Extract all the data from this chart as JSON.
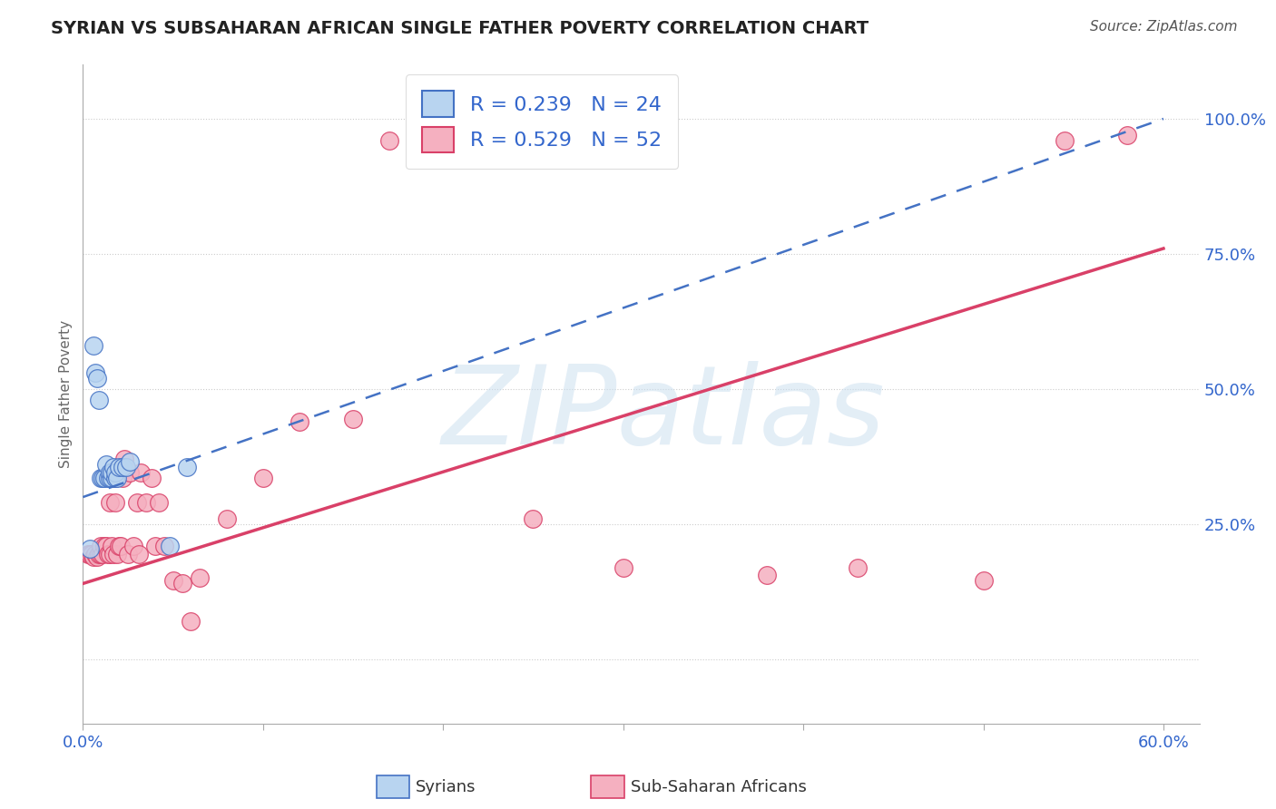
{
  "title": "SYRIAN VS SUBSAHARAN AFRICAN SINGLE FATHER POVERTY CORRELATION CHART",
  "source": "Source: ZipAtlas.com",
  "ylabel": "Single Father Poverty",
  "watermark": "ZIPatlas",
  "xlim": [
    0.0,
    0.62
  ],
  "ylim": [
    -0.12,
    1.1
  ],
  "xtick_positions": [
    0.0,
    0.1,
    0.2,
    0.3,
    0.4,
    0.5,
    0.6
  ],
  "xticklabels": [
    "0.0%",
    "",
    "",
    "",
    "",
    "",
    "60.0%"
  ],
  "ytick_positions": [
    0.0,
    0.25,
    0.5,
    0.75,
    1.0
  ],
  "ytick_labels": [
    "",
    "25.0%",
    "50.0%",
    "75.0%",
    "100.0%"
  ],
  "syrian_R": 0.239,
  "syrian_N": 24,
  "subsaharan_R": 0.529,
  "subsaharan_N": 52,
  "syrian_color": "#b8d4f0",
  "subsaharan_color": "#f5b0c0",
  "syrian_edge_color": "#4472c4",
  "subsaharan_edge_color": "#d94068",
  "syrian_line_color": "#4472c4",
  "subsaharan_line_color": "#d94068",
  "syrian_line": {
    "x0": 0.0,
    "y0": 0.3,
    "x1": 0.6,
    "y1": 1.0
  },
  "subsaharan_line": {
    "x0": 0.0,
    "y0": 0.14,
    "x1": 0.6,
    "y1": 0.76
  },
  "syrians_x": [
    0.004,
    0.006,
    0.007,
    0.008,
    0.009,
    0.01,
    0.011,
    0.012,
    0.013,
    0.014,
    0.015,
    0.015,
    0.016,
    0.016,
    0.017,
    0.018,
    0.018,
    0.019,
    0.02,
    0.022,
    0.024,
    0.026,
    0.048,
    0.058
  ],
  "syrians_y": [
    0.205,
    0.58,
    0.53,
    0.52,
    0.48,
    0.335,
    0.335,
    0.335,
    0.36,
    0.335,
    0.335,
    0.345,
    0.335,
    0.345,
    0.355,
    0.335,
    0.345,
    0.335,
    0.355,
    0.355,
    0.355,
    0.365,
    0.21,
    0.355
  ],
  "subsaharan_x": [
    0.003,
    0.004,
    0.005,
    0.006,
    0.007,
    0.008,
    0.009,
    0.01,
    0.01,
    0.011,
    0.012,
    0.013,
    0.014,
    0.015,
    0.015,
    0.016,
    0.017,
    0.018,
    0.018,
    0.019,
    0.02,
    0.021,
    0.022,
    0.023,
    0.025,
    0.026,
    0.028,
    0.03,
    0.031,
    0.032,
    0.035,
    0.038,
    0.04,
    0.042,
    0.045,
    0.05,
    0.055,
    0.06,
    0.065,
    0.08,
    0.1,
    0.12,
    0.15,
    0.17,
    0.2,
    0.25,
    0.3,
    0.38,
    0.43,
    0.5,
    0.545,
    0.58
  ],
  "subsaharan_y": [
    0.195,
    0.195,
    0.195,
    0.19,
    0.195,
    0.19,
    0.195,
    0.195,
    0.21,
    0.195,
    0.21,
    0.21,
    0.195,
    0.195,
    0.29,
    0.21,
    0.195,
    0.29,
    0.335,
    0.195,
    0.21,
    0.21,
    0.335,
    0.37,
    0.195,
    0.345,
    0.21,
    0.29,
    0.195,
    0.345,
    0.29,
    0.335,
    0.21,
    0.29,
    0.21,
    0.145,
    0.14,
    0.07,
    0.15,
    0.26,
    0.335,
    0.44,
    0.445,
    0.96,
    0.925,
    0.26,
    0.17,
    0.155,
    0.17,
    0.145,
    0.96,
    0.97
  ]
}
